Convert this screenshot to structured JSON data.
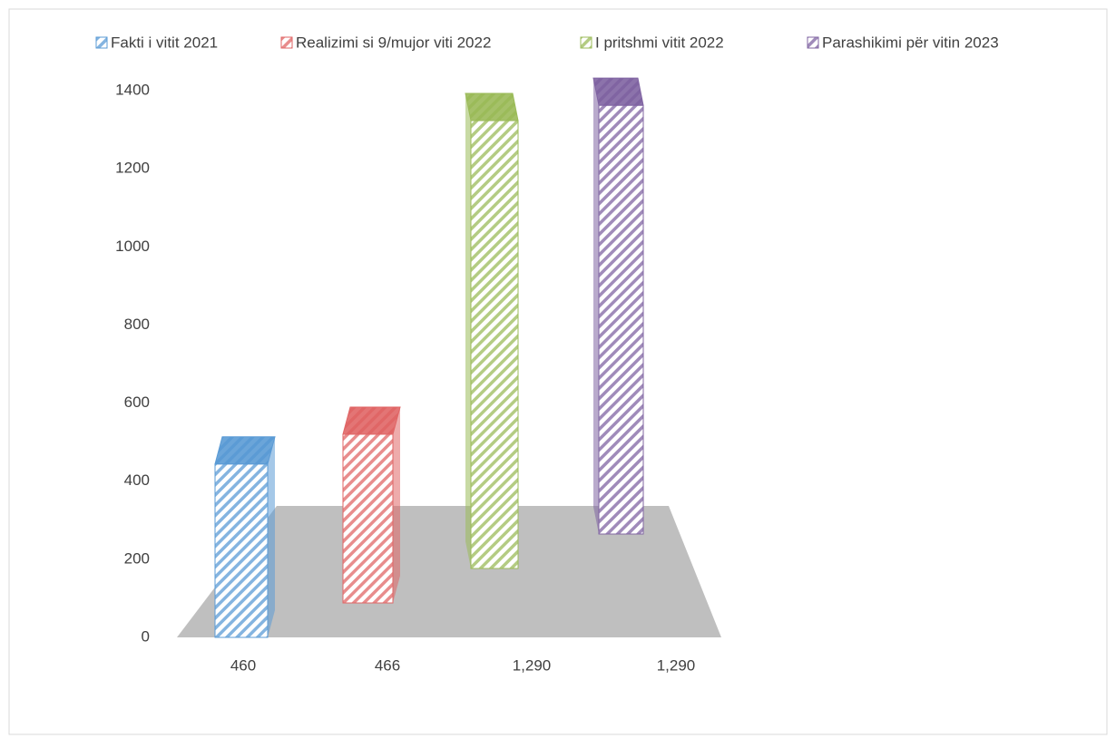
{
  "chart_data": {
    "type": "bar3d",
    "series": [
      {
        "name": "Fakti i vitit 2021",
        "color": "#5b9bd5",
        "values": [
          460
        ]
      },
      {
        "name": "Realizimi si 9/mujor viti 2022",
        "color": "#e06666",
        "values": [
          466
        ]
      },
      {
        "name": "I pritshmi  vitit 2022",
        "color": "#9bbb59",
        "values": [
          1290
        ],
        "value_labels": [
          "1,290"
        ]
      },
      {
        "name": "Parashikimi për vitin 2023",
        "color": "#8064a2",
        "values": [
          1290
        ],
        "value_labels": [
          "1,290"
        ]
      }
    ],
    "ylim": [
      0,
      1400
    ],
    "yticks": [
      0,
      200,
      400,
      600,
      800,
      1000,
      1200,
      1400
    ],
    "legend": "top"
  }
}
